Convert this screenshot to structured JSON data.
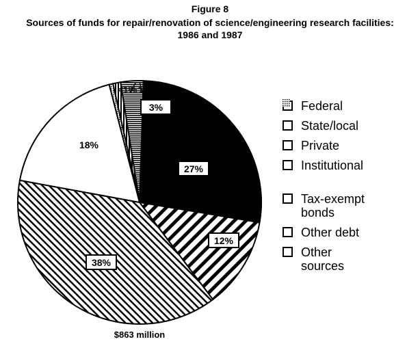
{
  "chart_data": {
    "type": "pie",
    "title": "Figure 8",
    "subtitle": "Sources of funds for repair/renovation of science/engineering research facilities: 1986 and 1987",
    "categories": [
      "Federal",
      "State/local",
      "Private",
      "Institutional",
      "Tax-exempt bonds",
      "Other debt",
      "Other sources"
    ],
    "values": [
      27,
      3,
      12,
      38,
      18,
      1,
      0.5
    ],
    "value_labels": [
      "27%",
      "3%",
      "12%",
      "38%",
      "18%",
      "1%",
      "<1%"
    ],
    "total_label": "$863 million"
  }
}
